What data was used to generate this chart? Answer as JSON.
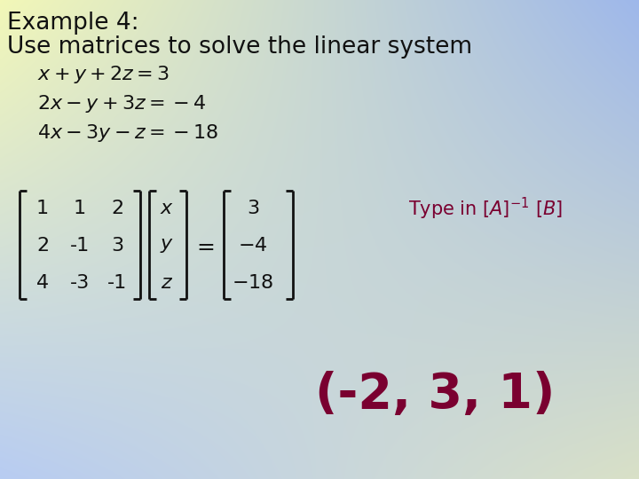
{
  "title_line1": "Example 4:",
  "title_line2": "Use matrices to solve the linear system",
  "matrix_A": [
    [
      1,
      1,
      2
    ],
    [
      2,
      -1,
      3
    ],
    [
      4,
      -3,
      -1
    ]
  ],
  "matrix_x": [
    "x",
    "y",
    "z"
  ],
  "matrix_B": [
    3,
    -4,
    -18
  ],
  "answer": "(-2, 3, 1)",
  "bg_tl": [
    0.95,
    0.97,
    0.72
  ],
  "bg_tr": [
    0.62,
    0.72,
    0.92
  ],
  "bg_bl": [
    0.72,
    0.8,
    0.95
  ],
  "bg_br": [
    0.85,
    0.88,
    0.78
  ],
  "title_color": "#111111",
  "eq_color": "#111111",
  "typein_color": "#7a0030",
  "answer_color": "#7a0030",
  "matrix_color": "#111111",
  "bracket_color": "#111111",
  "figsize": [
    7.2,
    5.4
  ],
  "dpi": 100
}
